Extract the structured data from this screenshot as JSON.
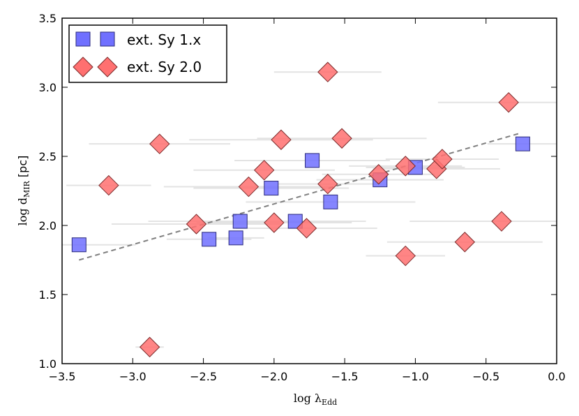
{
  "chart_data": {
    "type": "scatter",
    "xlabel": "log λ_Edd",
    "xlabel_main": "log λ",
    "xlabel_sub": "Edd",
    "ylabel": "log d_MIR [pc]",
    "ylabel_main": "log d",
    "ylabel_sub": "MIR",
    "ylabel_unit": " [pc]",
    "xlim": [
      -3.5,
      0.0
    ],
    "ylim": [
      1.0,
      3.5
    ],
    "xticks": [
      -3.5,
      -3.0,
      -2.5,
      -2.0,
      -1.5,
      -1.0,
      -0.5,
      0.0
    ],
    "xtick_labels": [
      "−3.5",
      "−3.0",
      "−2.5",
      "−2.0",
      "−1.5",
      "−1.0",
      "−0.5",
      "0.0"
    ],
    "yticks": [
      1.0,
      1.5,
      2.0,
      2.5,
      3.0,
      3.5
    ],
    "ytick_labels": [
      "1.0",
      "1.5",
      "2.0",
      "2.5",
      "3.0",
      "3.5"
    ],
    "legend": {
      "location": "top-left",
      "entries": [
        {
          "label": "ext. Sy 1.x",
          "marker": "square",
          "color": "#7070ff"
        },
        {
          "label": "ext. Sy 2.0",
          "marker": "diamond",
          "color": "#ff7070"
        }
      ]
    },
    "fit_line": {
      "x": [
        -3.38,
        -0.25
      ],
      "y": [
        1.75,
        2.67
      ],
      "style": "dashed",
      "color": "#7f7f7f"
    },
    "series": [
      {
        "name": "ext. Sy 1.x",
        "marker": "square",
        "color": "#7070ff",
        "points": [
          {
            "x": -3.38,
            "y": 1.86,
            "xerr": 0.4
          },
          {
            "x": -2.46,
            "y": 1.9,
            "xerr": 0.3
          },
          {
            "x": -2.27,
            "y": 1.91,
            "xerr": 0.2
          },
          {
            "x": -2.24,
            "y": 2.03,
            "xerr": 0.65
          },
          {
            "x": -2.02,
            "y": 2.27,
            "xerr": 0.55
          },
          {
            "x": -1.85,
            "y": 2.03,
            "xerr": 0.5
          },
          {
            "x": -1.73,
            "y": 2.47,
            "xerr": 0.55
          },
          {
            "x": -1.6,
            "y": 2.17,
            "xerr": 0.6
          },
          {
            "x": -1.25,
            "y": 2.33,
            "xerr": 0.45
          },
          {
            "x": -1.0,
            "y": 2.42,
            "xerr": 0.35
          },
          {
            "x": -0.24,
            "y": 2.59,
            "xerr": 0.25
          }
        ]
      },
      {
        "name": "ext. Sy 2.0",
        "marker": "diamond",
        "color": "#ff7070",
        "points": [
          {
            "x": -3.17,
            "y": 2.29,
            "xerr": 0.3
          },
          {
            "x": -2.88,
            "y": 1.12,
            "xerr": 0.1
          },
          {
            "x": -2.81,
            "y": 2.59,
            "xerr": 0.5
          },
          {
            "x": -2.55,
            "y": 2.01,
            "xerr": 0.6
          },
          {
            "x": -2.18,
            "y": 2.28,
            "xerr": 0.6
          },
          {
            "x": -2.07,
            "y": 2.4,
            "xerr": 0.5
          },
          {
            "x": -2.0,
            "y": 2.02,
            "xerr": 0.55
          },
          {
            "x": -1.95,
            "y": 2.62,
            "xerr": 0.65
          },
          {
            "x": -1.77,
            "y": 1.98,
            "xerr": 0.5
          },
          {
            "x": -1.62,
            "y": 3.11,
            "xerr": 0.38
          },
          {
            "x": -1.62,
            "y": 2.3,
            "xerr": 0.35
          },
          {
            "x": -1.52,
            "y": 2.63,
            "xerr": 0.6
          },
          {
            "x": -1.26,
            "y": 2.37,
            "xerr": 0.4
          },
          {
            "x": -1.07,
            "y": 2.43,
            "xerr": 0.4
          },
          {
            "x": -1.07,
            "y": 1.78,
            "xerr": 0.28
          },
          {
            "x": -0.85,
            "y": 2.41,
            "xerr": 0.45
          },
          {
            "x": -0.81,
            "y": 2.48,
            "xerr": 0.4
          },
          {
            "x": -0.65,
            "y": 1.88,
            "xerr": 0.55
          },
          {
            "x": -0.39,
            "y": 2.03,
            "xerr": 0.65
          },
          {
            "x": -0.34,
            "y": 2.89,
            "xerr": 0.5
          }
        ]
      }
    ]
  }
}
